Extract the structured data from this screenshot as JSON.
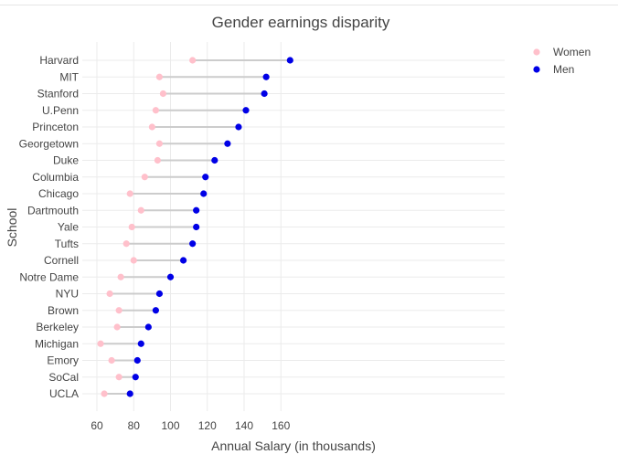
{
  "chart_data": {
    "type": "scatter",
    "title": "Gender earnings disparity",
    "xlabel": "Annual Salary (in thousands)",
    "ylabel": "School",
    "xlim": [
      55,
      168
    ],
    "xticks": [
      60,
      80,
      100,
      120,
      140,
      160
    ],
    "grid": true,
    "legend_position": "top-right",
    "categories": [
      "Harvard",
      "MIT",
      "Stanford",
      "U.Penn",
      "Princeton",
      "Georgetown",
      "Duke",
      "Columbia",
      "Chicago",
      "Dartmouth",
      "Yale",
      "Tufts",
      "Cornell",
      "Notre Dame",
      "NYU",
      "Brown",
      "Berkeley",
      "Michigan",
      "Emory",
      "SoCal",
      "UCLA"
    ],
    "series": [
      {
        "name": "Women",
        "color": "#ffc0cb",
        "values": [
          112,
          94,
          96,
          92,
          90,
          94,
          93,
          86,
          78,
          84,
          79,
          76,
          80,
          73,
          67,
          72,
          71,
          62,
          68,
          72,
          64
        ]
      },
      {
        "name": "Men",
        "color": "#0000e6",
        "values": [
          165,
          152,
          151,
          141,
          137,
          131,
          124,
          119,
          118,
          114,
          114,
          112,
          107,
          100,
          94,
          92,
          88,
          84,
          82,
          81,
          78
        ]
      }
    ]
  }
}
